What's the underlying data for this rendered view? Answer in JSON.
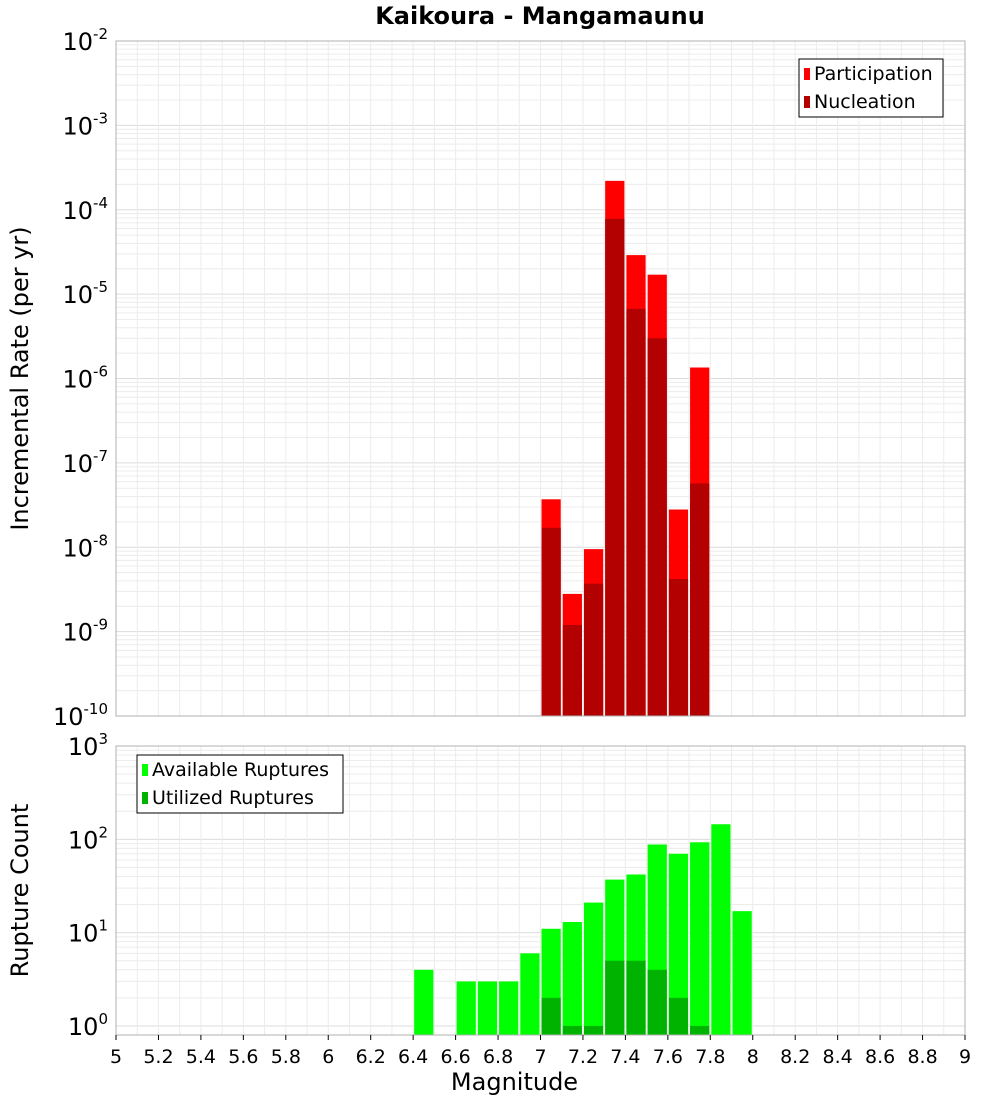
{
  "chart_data": [
    {
      "type": "bar",
      "title": "Kaikoura - Mangamaunu",
      "xlabel": "",
      "ylabel": "Incremental Rate (per yr)",
      "yscale": "log",
      "ylim": [
        1e-10,
        0.01
      ],
      "xlim": [
        5,
        9
      ],
      "grid": true,
      "legend_position": "top-right",
      "bar_width": 0.1,
      "colors": {
        "Participation": "#ff0000",
        "Nucleation": "#b30000"
      },
      "x": [
        7.05,
        7.15,
        7.25,
        7.35,
        7.45,
        7.55,
        7.65,
        7.75
      ],
      "series": [
        {
          "name": "Participation",
          "values": [
            3.7e-08,
            2.8e-09,
            9.5e-09,
            0.00022,
            2.9e-05,
            1.7e-05,
            2.8e-08,
            1.35e-06
          ]
        },
        {
          "name": "Nucleation",
          "values": [
            1.7e-08,
            1.2e-09,
            3.7e-09,
            7.8e-05,
            6.7e-06,
            3e-06,
            4.2e-09,
            5.7e-08
          ]
        }
      ]
    },
    {
      "type": "bar",
      "xlabel": "Magnitude",
      "ylabel": "Rupture Count",
      "yscale": "log",
      "ylim": [
        0.8,
        1000
      ],
      "xlim": [
        5,
        9
      ],
      "grid": true,
      "legend_position": "top-left",
      "bar_width": 0.1,
      "colors": {
        "Available Ruptures": "#00ff00",
        "Utilized Ruptures": "#00b300"
      },
      "x_ticks": [
        "5",
        "5.2",
        "5.4",
        "5.6",
        "5.8",
        "6",
        "6.2",
        "6.4",
        "6.6",
        "6.8",
        "7",
        "7.2",
        "7.4",
        "7.6",
        "7.8",
        "8",
        "8.2",
        "8.4",
        "8.6",
        "8.8",
        "9"
      ],
      "x": [
        6.45,
        6.55,
        6.65,
        6.75,
        6.85,
        6.95,
        7.05,
        7.15,
        7.25,
        7.35,
        7.45,
        7.55,
        7.65,
        7.75,
        7.85,
        7.95
      ],
      "series": [
        {
          "name": "Available Ruptures",
          "values": [
            4,
            0,
            3,
            3,
            3,
            6,
            11,
            13,
            21,
            37,
            42,
            88,
            70,
            93,
            145,
            17
          ]
        },
        {
          "name": "Utilized Ruptures",
          "values": [
            0,
            0,
            0,
            0,
            0,
            0,
            2,
            1,
            1,
            5,
            5,
            4,
            2,
            1,
            0,
            0
          ]
        }
      ]
    }
  ]
}
